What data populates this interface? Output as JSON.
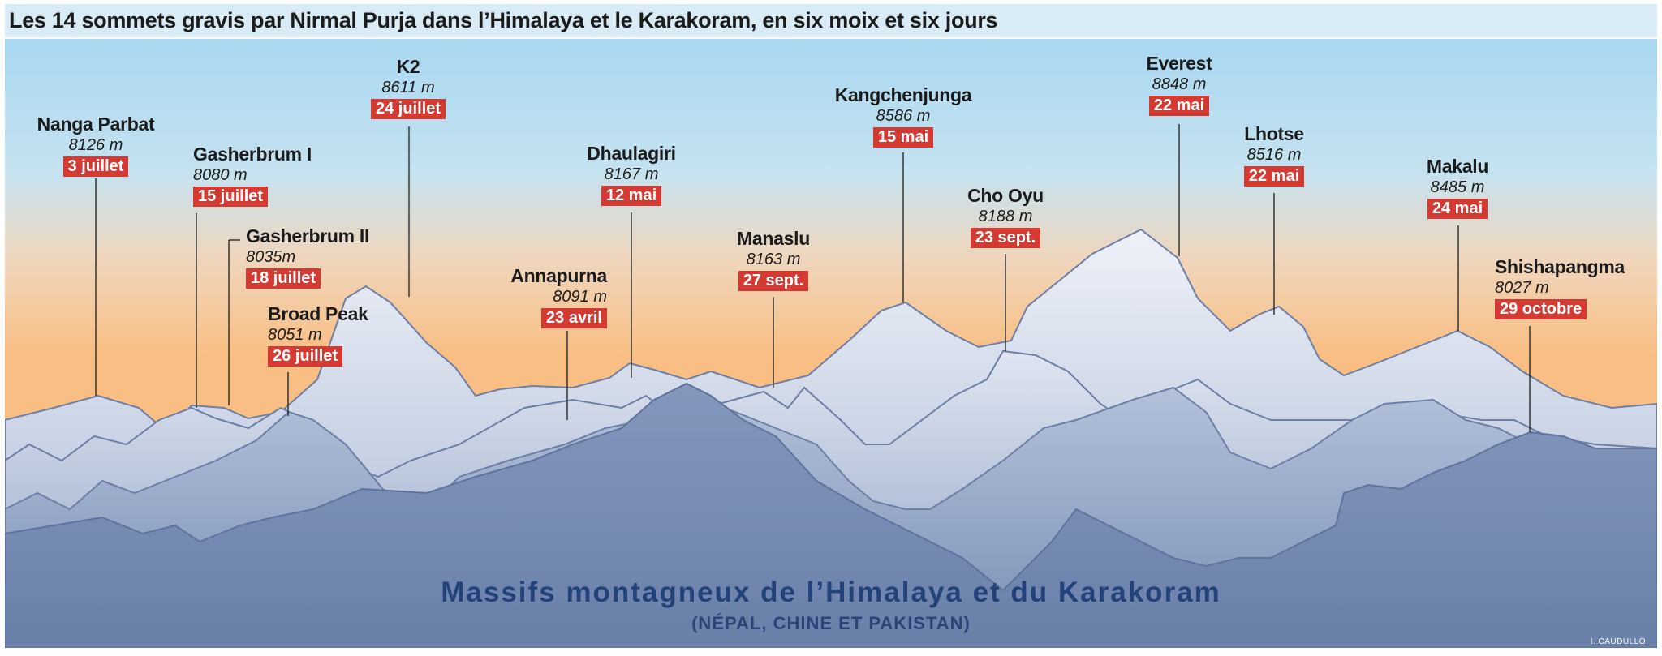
{
  "title": "Les 14 sommets gravis par Nirmal Purja dans l’Himalaya et le Karakoram, en six moix et six jours",
  "caption": {
    "main": "Massifs montagneux de l’Himalaya et du Karakoram",
    "sub": "(NÉPAL, CHINE ET PAKISTAN)"
  },
  "credit": "I. CAUDULLO",
  "colors": {
    "sky_top": "#a9d8f1",
    "sky_bottom": "#f9be83",
    "label_red": "#d43a32",
    "caption_blue": "#24427a"
  },
  "peaks": [
    {
      "name": "Nanga Parbat",
      "altitude": "8126 m",
      "date": "3 juillet"
    },
    {
      "name": "Gasherbrum I",
      "altitude": "8080 m",
      "date": "15 juillet"
    },
    {
      "name": "Gasherbrum II",
      "altitude": "8035m",
      "date": "18 juillet"
    },
    {
      "name": "Broad Peak",
      "altitude": "8051 m",
      "date": "26 juillet"
    },
    {
      "name": "K2",
      "altitude": "8611 m",
      "date": "24 juillet"
    },
    {
      "name": "Annapurna",
      "altitude": "8091 m",
      "date": "23 avril"
    },
    {
      "name": "Dhaulagiri",
      "altitude": "8167 m",
      "date": "12 mai"
    },
    {
      "name": "Manaslu",
      "altitude": "8163  m",
      "date": "27 sept."
    },
    {
      "name": "Kangchenjunga",
      "altitude": "8586  m",
      "date": "15 mai"
    },
    {
      "name": "Cho Oyu",
      "altitude": "8188 m",
      "date": "23 sept."
    },
    {
      "name": "Everest",
      "altitude": "8848 m",
      "date": "22 mai"
    },
    {
      "name": "Lhotse",
      "altitude": "8516 m",
      "date": "22 mai"
    },
    {
      "name": "Makalu",
      "altitude": "8485 m",
      "date": "24 mai"
    },
    {
      "name": "Shishapangma",
      "altitude": "8027 m",
      "date": "29 octobre"
    }
  ]
}
